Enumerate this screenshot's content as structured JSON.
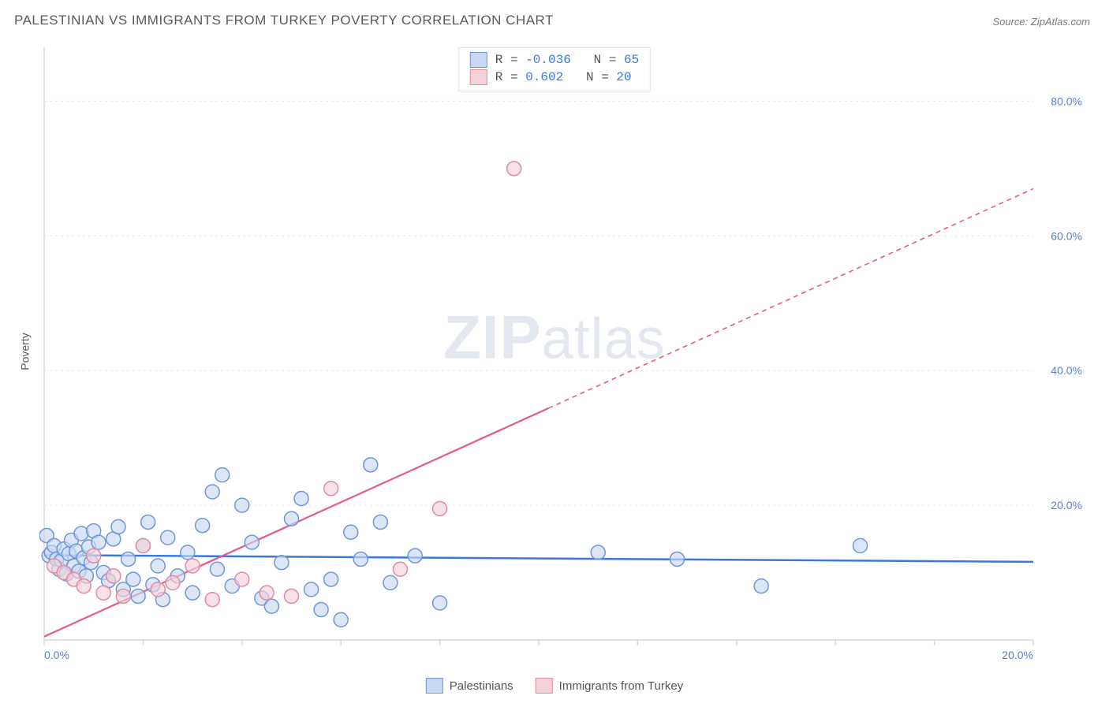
{
  "title": "PALESTINIAN VS IMMIGRANTS FROM TURKEY POVERTY CORRELATION CHART",
  "source": "Source: ZipAtlas.com",
  "y_axis_label": "Poverty",
  "watermark": {
    "bold": "ZIP",
    "light": "atlas"
  },
  "chart": {
    "type": "scatter",
    "background_color": "#ffffff",
    "axis_color": "#d9d9d9",
    "grid_color": "#e6e6e6",
    "tick_label_color": "#5b7fc7",
    "xlim": [
      0,
      20
    ],
    "ylim": [
      0,
      88
    ],
    "x_ticks": [
      0,
      2,
      4,
      6,
      8,
      10,
      12,
      14,
      16,
      18,
      20
    ],
    "x_tick_labels": {
      "0": "0.0%",
      "20": "20.0%"
    },
    "y_ticks": [
      20,
      40,
      60,
      80
    ],
    "y_tick_labels": {
      "20": "20.0%",
      "40": "40.0%",
      "60": "60.0%",
      "80": "80.0%"
    },
    "marker_radius": 9,
    "marker_stroke_width": 1.5,
    "series": [
      {
        "key": "palestinians",
        "label": "Palestinians",
        "fill": "#c9d9f2",
        "stroke": "#6f97d8",
        "trend": {
          "color": "#3b78d8",
          "width": 2.5,
          "x1": 0,
          "y1": 12.6,
          "x2": 20,
          "y2": 11.6,
          "dash": null,
          "solid_until_x": 20
        },
        "R": "-0.036",
        "N": "65",
        "points": [
          [
            0.05,
            15.5
          ],
          [
            0.1,
            12.5
          ],
          [
            0.15,
            13.0
          ],
          [
            0.2,
            14.0
          ],
          [
            0.25,
            12.0
          ],
          [
            0.3,
            10.5
          ],
          [
            0.35,
            11.8
          ],
          [
            0.4,
            13.5
          ],
          [
            0.45,
            9.8
          ],
          [
            0.5,
            12.8
          ],
          [
            0.55,
            14.8
          ],
          [
            0.6,
            11.0
          ],
          [
            0.65,
            13.2
          ],
          [
            0.7,
            10.2
          ],
          [
            0.75,
            15.8
          ],
          [
            0.8,
            12.2
          ],
          [
            0.85,
            9.5
          ],
          [
            0.9,
            13.8
          ],
          [
            0.95,
            11.5
          ],
          [
            1.0,
            16.2
          ],
          [
            1.1,
            14.5
          ],
          [
            1.2,
            10.0
          ],
          [
            1.3,
            8.8
          ],
          [
            1.4,
            15.0
          ],
          [
            1.5,
            16.8
          ],
          [
            1.6,
            7.5
          ],
          [
            1.7,
            12.0
          ],
          [
            1.8,
            9.0
          ],
          [
            1.9,
            6.5
          ],
          [
            2.0,
            14.0
          ],
          [
            2.1,
            17.5
          ],
          [
            2.2,
            8.2
          ],
          [
            2.3,
            11.0
          ],
          [
            2.4,
            6.0
          ],
          [
            2.5,
            15.2
          ],
          [
            2.7,
            9.5
          ],
          [
            2.9,
            13.0
          ],
          [
            3.0,
            7.0
          ],
          [
            3.2,
            17.0
          ],
          [
            3.4,
            22.0
          ],
          [
            3.5,
            10.5
          ],
          [
            3.6,
            24.5
          ],
          [
            3.8,
            8.0
          ],
          [
            4.0,
            20.0
          ],
          [
            4.2,
            14.5
          ],
          [
            4.4,
            6.2
          ],
          [
            4.6,
            5.0
          ],
          [
            4.8,
            11.5
          ],
          [
            5.0,
            18.0
          ],
          [
            5.2,
            21.0
          ],
          [
            5.4,
            7.5
          ],
          [
            5.6,
            4.5
          ],
          [
            5.8,
            9.0
          ],
          [
            6.0,
            3.0
          ],
          [
            6.2,
            16.0
          ],
          [
            6.4,
            12.0
          ],
          [
            6.6,
            26.0
          ],
          [
            6.8,
            17.5
          ],
          [
            7.0,
            8.5
          ],
          [
            7.5,
            12.5
          ],
          [
            8.0,
            5.5
          ],
          [
            11.2,
            13.0
          ],
          [
            12.8,
            12.0
          ],
          [
            14.5,
            8.0
          ],
          [
            16.5,
            14.0
          ]
        ]
      },
      {
        "key": "turkey",
        "label": "Immigrants from Turkey",
        "fill": "#f5d1da",
        "stroke": "#e28aa3",
        "trend": {
          "color": "#e35a8e",
          "width": 2.2,
          "x1": 0,
          "y1": 0.5,
          "x2": 20,
          "y2": 67.0,
          "dash": "6,5",
          "solid_until_x": 10.2
        },
        "R": "0.602",
        "N": "20",
        "points": [
          [
            0.2,
            11.0
          ],
          [
            0.4,
            10.0
          ],
          [
            0.6,
            9.0
          ],
          [
            0.8,
            8.0
          ],
          [
            1.0,
            12.5
          ],
          [
            1.2,
            7.0
          ],
          [
            1.4,
            9.5
          ],
          [
            1.6,
            6.5
          ],
          [
            2.0,
            14.0
          ],
          [
            2.3,
            7.5
          ],
          [
            2.6,
            8.5
          ],
          [
            3.0,
            11.0
          ],
          [
            3.4,
            6.0
          ],
          [
            4.0,
            9.0
          ],
          [
            4.5,
            7.0
          ],
          [
            5.0,
            6.5
          ],
          [
            5.8,
            22.5
          ],
          [
            7.2,
            10.5
          ],
          [
            8.0,
            19.5
          ],
          [
            9.5,
            70.0
          ]
        ]
      }
    ]
  },
  "legend_top": {
    "R_label": "R =",
    "N_label": "N =",
    "value_color": "#3b78d8"
  },
  "legend_bottom": {
    "items": [
      "palestinians",
      "turkey"
    ]
  }
}
